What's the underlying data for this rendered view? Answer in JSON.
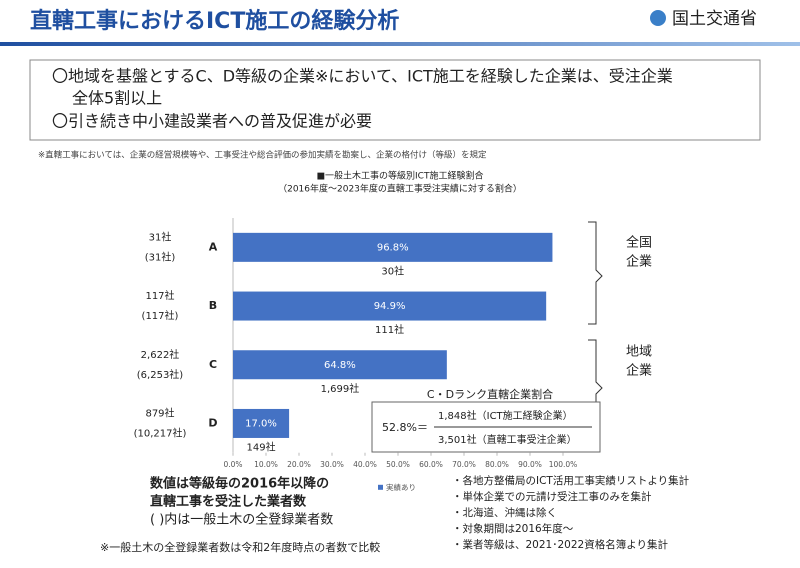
{
  "header": {
    "title": "直轄工事におけるICT施工の経験分析",
    "logo": "国土交通省"
  },
  "summary": {
    "lines": [
      "〇地域を基盤とするC、D等級の企業※において、ICT施工を経験した企業は、受注企業",
      "全体5割以上",
      "〇引き続き中小建設業者への普及促進が必要"
    ]
  },
  "note": "※直轄工事においては、企業の経営規模等や、工事受注や総合評価の参加実績を勘案し、企業の格付け（等級）を規定",
  "chart_data": {
    "type": "bar",
    "orientation": "horizontal",
    "title": "■一般土木工事の等級別ICT施工経験割合",
    "subtitle": "（2016年度～2023年度の直轄工事受注実績に対する割合）",
    "categories": [
      "A",
      "B",
      "C",
      "D"
    ],
    "series": [
      {
        "name": "実績あり",
        "color": "#4472c4",
        "values": [
          96.8,
          94.9,
          64.8,
          17.0
        ],
        "value_labels": [
          "96.8%",
          "94.9%",
          "64.8%",
          "17.0%"
        ]
      }
    ],
    "xlim": [
      0,
      100
    ],
    "xticks": [
      {
        "value": 0,
        "label": "0.0%"
      },
      {
        "value": 10,
        "label": "10.0%"
      },
      {
        "value": 20,
        "label": "20.0%"
      },
      {
        "value": 30,
        "label": "30.0%"
      },
      {
        "value": 40,
        "label": "40.0%"
      },
      {
        "value": 50,
        "label": "50.0%"
      },
      {
        "value": 60,
        "label": "60.0%"
      },
      {
        "value": 70,
        "label": "70.0%"
      },
      {
        "value": 80,
        "label": "80.0%"
      },
      {
        "value": 90,
        "label": "90.0%"
      },
      {
        "value": 100,
        "label": "100.0%"
      }
    ],
    "firm_counts": [
      "30社",
      "111社",
      "1,699社",
      "149社"
    ],
    "left_labels": [
      [
        "31社",
        "(31社)"
      ],
      [
        "117社",
        "(117社)"
      ],
      [
        "2,622社",
        "(6,253社)"
      ],
      [
        "879社",
        "(10,217社)"
      ]
    ],
    "groups": [
      [
        "全国",
        "企業"
      ],
      [
        "地域",
        "企業"
      ]
    ],
    "cd_ratio": {
      "title": "C・Dランク直轄企業割合",
      "value": "52.8%＝",
      "numerator": "1,848社（ICT施工経験企業）",
      "denominator": "3,501社（直轄工事受注企業）"
    }
  },
  "legend_note": {
    "lines": [
      "数値は等級毎の2016年以降の",
      "直轄工事を受注した業者数",
      "( )内は一般土木の全登録業者数"
    ]
  },
  "footnote": "※一般土木の全登録業者数は令和2年度時点の者数で比較",
  "sources": {
    "lines": [
      "・各地方整備局のICT活用工事実績リストより集計",
      "・単体企業での元請け受注工事のみを集計",
      "・北海道、沖縄は除く",
      "・対象期間は2016年度～",
      "・業者等級は、2021･2022資格名簿より集計"
    ]
  }
}
